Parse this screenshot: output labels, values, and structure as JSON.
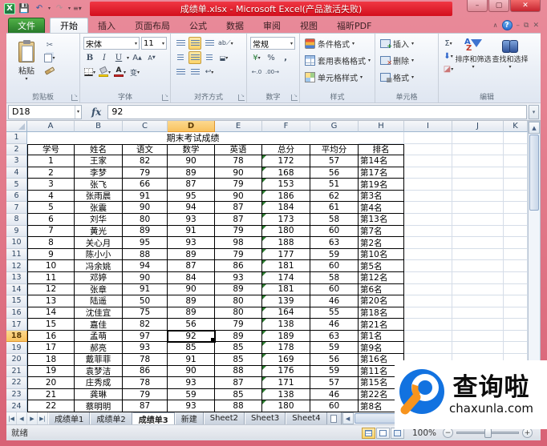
{
  "window": {
    "title": "成绩单.xlsx - Microsoft Excel(产品激活失败)"
  },
  "ribbon_tabs": {
    "file": "文件",
    "tabs": [
      "开始",
      "插入",
      "页面布局",
      "公式",
      "数据",
      "审阅",
      "视图",
      "福昕PDF"
    ],
    "active": "开始"
  },
  "ribbon": {
    "clipboard": {
      "paste": "粘贴",
      "label": "剪贴板"
    },
    "font": {
      "font_name": "宋体",
      "font_size": "11",
      "bold": "B",
      "italic": "I",
      "underline": "U",
      "phonetic": "变",
      "label": "字体"
    },
    "alignment": {
      "label": "对齐方式"
    },
    "number": {
      "format": "常规",
      "percent": "%",
      "comma": ",",
      "currency": "¥",
      "dec_inc": "←.0",
      "dec_dec": ".00→",
      "label": "数字"
    },
    "styles": {
      "items": [
        "条件格式",
        "套用表格格式",
        "单元格样式"
      ],
      "label": "样式"
    },
    "cells": {
      "items": [
        "插入",
        "删除",
        "格式"
      ],
      "label": "单元格"
    },
    "editing": {
      "sigma": "Σ",
      "sort": "排序和筛选",
      "find": "查找和选择",
      "label": "编辑"
    }
  },
  "formula_bar": {
    "name_box": "D18",
    "fx": "fx",
    "content": "92"
  },
  "grid": {
    "columns": [
      "A",
      "B",
      "C",
      "D",
      "E",
      "F",
      "G",
      "H",
      "I",
      "J",
      "K"
    ],
    "row_count": 24,
    "selected_column": "D",
    "selected_row": 18,
    "selected_cell": "D18",
    "title": "期末考试成绩",
    "headers": [
      "学号",
      "姓名",
      "语文",
      "数学",
      "英语",
      "总分",
      "平均分",
      "排名"
    ],
    "rows": [
      [
        1,
        "王家",
        82,
        90,
        78,
        172,
        57,
        "第14名"
      ],
      [
        2,
        "李梦",
        79,
        89,
        90,
        168,
        56,
        "第17名"
      ],
      [
        3,
        "张飞",
        66,
        87,
        79,
        153,
        51,
        "第19名"
      ],
      [
        4,
        "张雨晨",
        91,
        95,
        90,
        186,
        62,
        "第3名"
      ],
      [
        5,
        "张震",
        90,
        94,
        87,
        184,
        61,
        "第4名"
      ],
      [
        6,
        "刘华",
        80,
        93,
        87,
        173,
        58,
        "第13名"
      ],
      [
        7,
        "黄光",
        89,
        91,
        79,
        180,
        60,
        "第7名"
      ],
      [
        8,
        "关心月",
        95,
        93,
        98,
        188,
        63,
        "第2名"
      ],
      [
        9,
        "陈小小",
        88,
        89,
        79,
        177,
        59,
        "第10名"
      ],
      [
        10,
        "冯余姚",
        94,
        87,
        86,
        181,
        60,
        "第5名"
      ],
      [
        11,
        "邓婷",
        90,
        84,
        93,
        174,
        58,
        "第12名"
      ],
      [
        12,
        "张章",
        91,
        90,
        89,
        181,
        60,
        "第6名"
      ],
      [
        13,
        "陆遥",
        50,
        89,
        80,
        139,
        46,
        "第20名"
      ],
      [
        14,
        "沈佳宜",
        75,
        89,
        80,
        164,
        55,
        "第18名"
      ],
      [
        15,
        "嘉佳",
        82,
        56,
        79,
        138,
        46,
        "第21名"
      ],
      [
        16,
        "孟萌",
        97,
        92,
        89,
        189,
        63,
        "第1名"
      ],
      [
        17,
        "郝亮",
        93,
        85,
        85,
        178,
        59,
        "第9名"
      ],
      [
        18,
        "戴菲菲",
        78,
        91,
        85,
        169,
        56,
        "第16名"
      ],
      [
        19,
        "袁梦洁",
        86,
        90,
        88,
        176,
        59,
        "第11名"
      ],
      [
        20,
        "庄秀成",
        78,
        93,
        87,
        171,
        57,
        "第15名"
      ],
      [
        21,
        "龚琳",
        79,
        59,
        85,
        138,
        46,
        "第22名"
      ],
      [
        22,
        "蔡明明",
        87,
        93,
        88,
        180,
        60,
        "第8名"
      ]
    ]
  },
  "sheet_tabs": {
    "tabs": [
      "成绩单1",
      "成绩单2",
      "成绩单3",
      "新建",
      "Sheet2",
      "Sheet3",
      "Sheet4"
    ],
    "active": "成绩单3"
  },
  "status_bar": {
    "status": "就绪",
    "zoom": "100%"
  },
  "watermark": {
    "name": "查询啦",
    "url": "chaxunla.com"
  },
  "icons": {
    "undo": "↶",
    "redo": "↷",
    "dropdown": "▾",
    "cut": "✂",
    "min": "–",
    "max": "▢",
    "close": "✕",
    "help": "?",
    "up": "▲",
    "down": "▼",
    "left": "◀",
    "right": "▶"
  },
  "colors": {
    "title_band": "#d30f1d",
    "selection_header": "#f8c25f",
    "error_triangle": "#2e7d32",
    "logo_blue": "#1272e0",
    "logo_orange": "#f7941e"
  }
}
